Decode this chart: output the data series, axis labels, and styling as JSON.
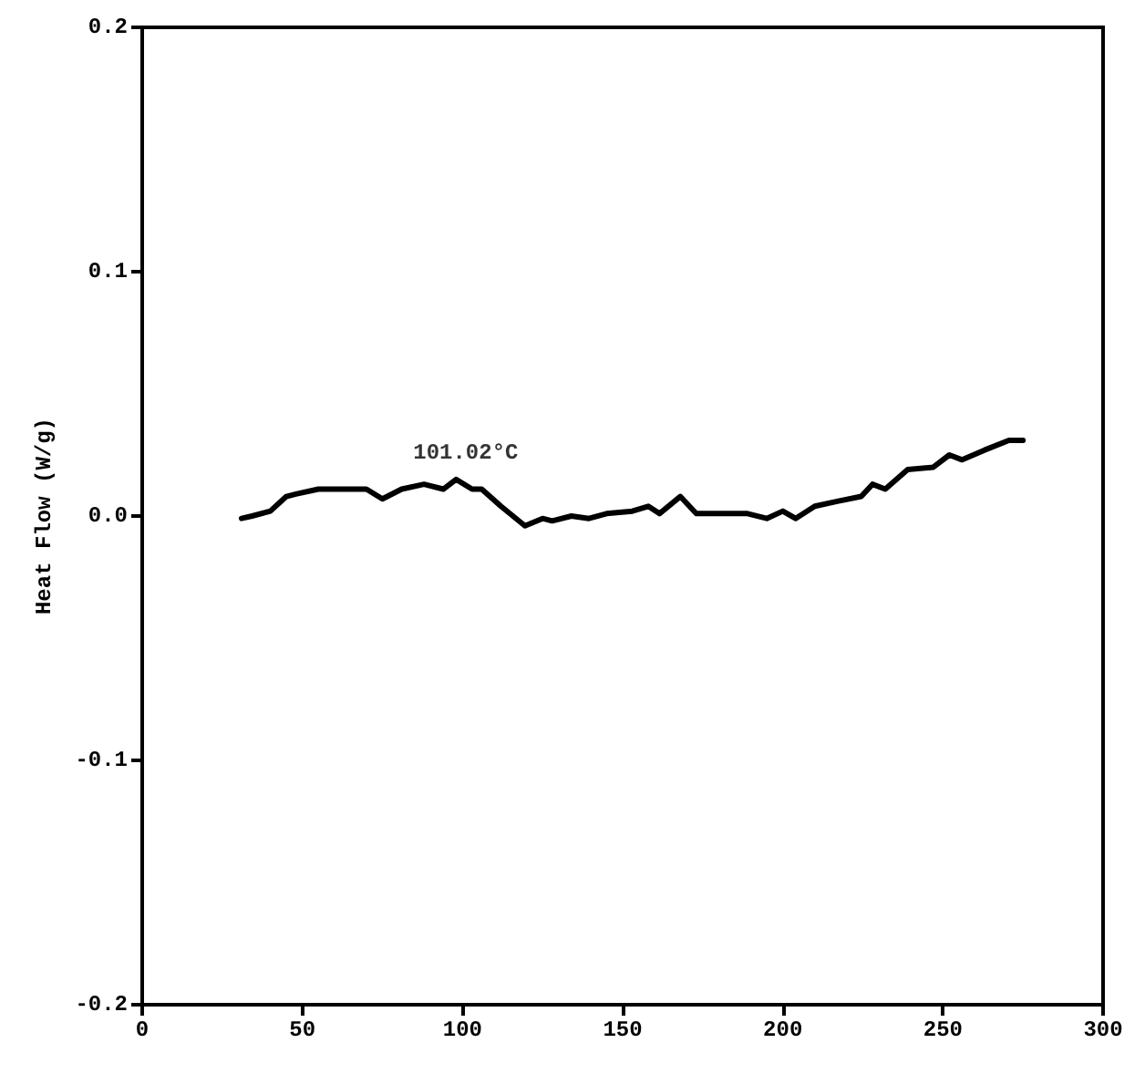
{
  "chart_data": {
    "type": "line",
    "ylabel": "Heat Flow (W/g)",
    "x": [
      31,
      34.3,
      40,
      45,
      48,
      55,
      62,
      70,
      75,
      81,
      88,
      94,
      98,
      103,
      106,
      112,
      119.5,
      125,
      128,
      134,
      139.5,
      145,
      153,
      158,
      161.5,
      168,
      173,
      182,
      189,
      195,
      200,
      204,
      210,
      217,
      224.5,
      228,
      232,
      239,
      247,
      252,
      256,
      263,
      270.6,
      275
    ],
    "series": [
      {
        "color": "#000000",
        "values": [
          -0.001,
          0,
          0.002,
          0.008,
          0.009,
          0.011,
          0.011,
          0.011,
          0.007,
          0.011,
          0.013,
          0.011,
          0.015,
          0.011,
          0.011,
          0.004,
          -0.004,
          -0.001,
          -0.002,
          0,
          -0.001,
          0.001,
          0.002,
          0.004,
          0.001,
          0.008,
          0.001,
          0.001,
          0.001,
          -0.001,
          0.002,
          -0.001,
          0.004,
          0.006,
          0.008,
          0.013,
          0.011,
          0.019,
          0.02,
          0.025,
          0.023,
          0.027,
          0.031,
          0.031
        ]
      }
    ],
    "annotations": [
      {
        "text": "101.02°C",
        "x": 101,
        "y": 0.015
      }
    ],
    "xlim": [
      0,
      300
    ],
    "xticks": [
      0,
      50,
      100,
      150,
      200,
      250,
      300
    ],
    "ylim": [
      -0.2,
      0.2
    ],
    "yticks": [
      -0.2,
      -0.1,
      {
        "value": 0,
        "label": "0.0"
      },
      0.1,
      0.2
    ],
    "grid": false,
    "marker": "none",
    "line_style": "solid"
  }
}
